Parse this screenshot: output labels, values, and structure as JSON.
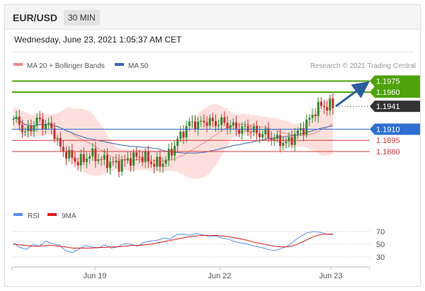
{
  "header": {
    "pair": "EUR/USD",
    "timeframe": "30 MIN"
  },
  "datetime": "Wednesday, June 23, 2021 1:05:37 AM CET",
  "credit": "Research © 2021 Trading Central",
  "colors": {
    "support": "#2f6fd1",
    "resistance_green": "#4ea20a",
    "level_red": "#d23b3b",
    "current": "#333333",
    "candle_up": "#2e8b2e",
    "candle_down": "#c43030",
    "bollinger_fill": "#fde0dd",
    "ma20": "#f08a8a",
    "ma50": "#3a69b3",
    "rsi": "#5b8def",
    "rsi_ma": "#d81818"
  },
  "chart_data": [
    {
      "type": "candlestick",
      "legend": [
        {
          "name": "MA 20 + Bollinger Bands",
          "color": "#f08a8a"
        },
        {
          "name": "MA 50",
          "color": "#3a69b3"
        }
      ],
      "ylim": [
        1.1815,
        1.1985
      ],
      "levels": [
        {
          "label": "1.1975",
          "value": 1.1975,
          "kind": "green"
        },
        {
          "label": "1.1960",
          "value": 1.196,
          "kind": "green"
        },
        {
          "label": "1.1941",
          "value": 1.1941,
          "kind": "current"
        },
        {
          "label": "1.1910",
          "value": 1.191,
          "kind": "blue"
        },
        {
          "label": "1.1895",
          "value": 1.1895,
          "kind": "red"
        },
        {
          "label": "1.1880",
          "value": 1.188,
          "kind": "red"
        }
      ],
      "target_arrow": {
        "from": 1.1941,
        "to": 1.1975
      },
      "price_path": [
        1.1924,
        1.1918,
        1.1905,
        1.1912,
        1.1922,
        1.1918,
        1.1915,
        1.1906,
        1.1884,
        1.1878,
        1.1872,
        1.1866,
        1.1868,
        1.1876,
        1.1874,
        1.1869,
        1.1867,
        1.1864,
        1.1862,
        1.1866,
        1.187,
        1.1872,
        1.1874,
        1.1869,
        1.1864,
        1.1863,
        1.1867,
        1.1878,
        1.1892,
        1.1904,
        1.1916,
        1.1919,
        1.1916,
        1.1922,
        1.1919,
        1.1918,
        1.192,
        1.1916,
        1.1913,
        1.1909,
        1.1911,
        1.191,
        1.1903,
        1.1905,
        1.1901,
        1.1896,
        1.1894,
        1.1891,
        1.1898,
        1.1906,
        1.1912,
        1.1924,
        1.1936,
        1.1942,
        1.1941,
        1.1942
      ]
    },
    {
      "type": "line",
      "legend": [
        {
          "name": "RSI",
          "color": "#5b8def"
        },
        {
          "name": "9MA",
          "color": "#d81818"
        }
      ],
      "y_ticks": [
        70,
        50,
        30
      ],
      "ylim": [
        20,
        80
      ],
      "rsi": [
        52,
        45,
        42,
        50,
        47,
        55,
        51,
        49,
        40,
        37,
        42,
        48,
        46,
        44,
        49,
        44,
        46,
        51,
        50,
        47,
        53,
        55,
        56,
        60,
        58,
        65,
        66,
        64,
        67,
        65,
        62,
        63,
        60,
        58,
        54,
        52,
        50,
        47,
        45,
        42,
        40,
        43,
        47,
        55,
        62,
        68,
        70,
        69,
        66,
        65
      ],
      "ma9": [
        50,
        49,
        48,
        47,
        47,
        48,
        48,
        47,
        46,
        44,
        44,
        44,
        44,
        45,
        45,
        46,
        46,
        47,
        48,
        48,
        49,
        50,
        52,
        54,
        56,
        58,
        60,
        62,
        63,
        64,
        64,
        64,
        63,
        62,
        60,
        58,
        56,
        53,
        51,
        49,
        47,
        46,
        46,
        48,
        52,
        57,
        62,
        65,
        66,
        66
      ],
      "x_ticks": [
        "Jun 19",
        "Jun 22",
        "Jun 23"
      ]
    }
  ]
}
